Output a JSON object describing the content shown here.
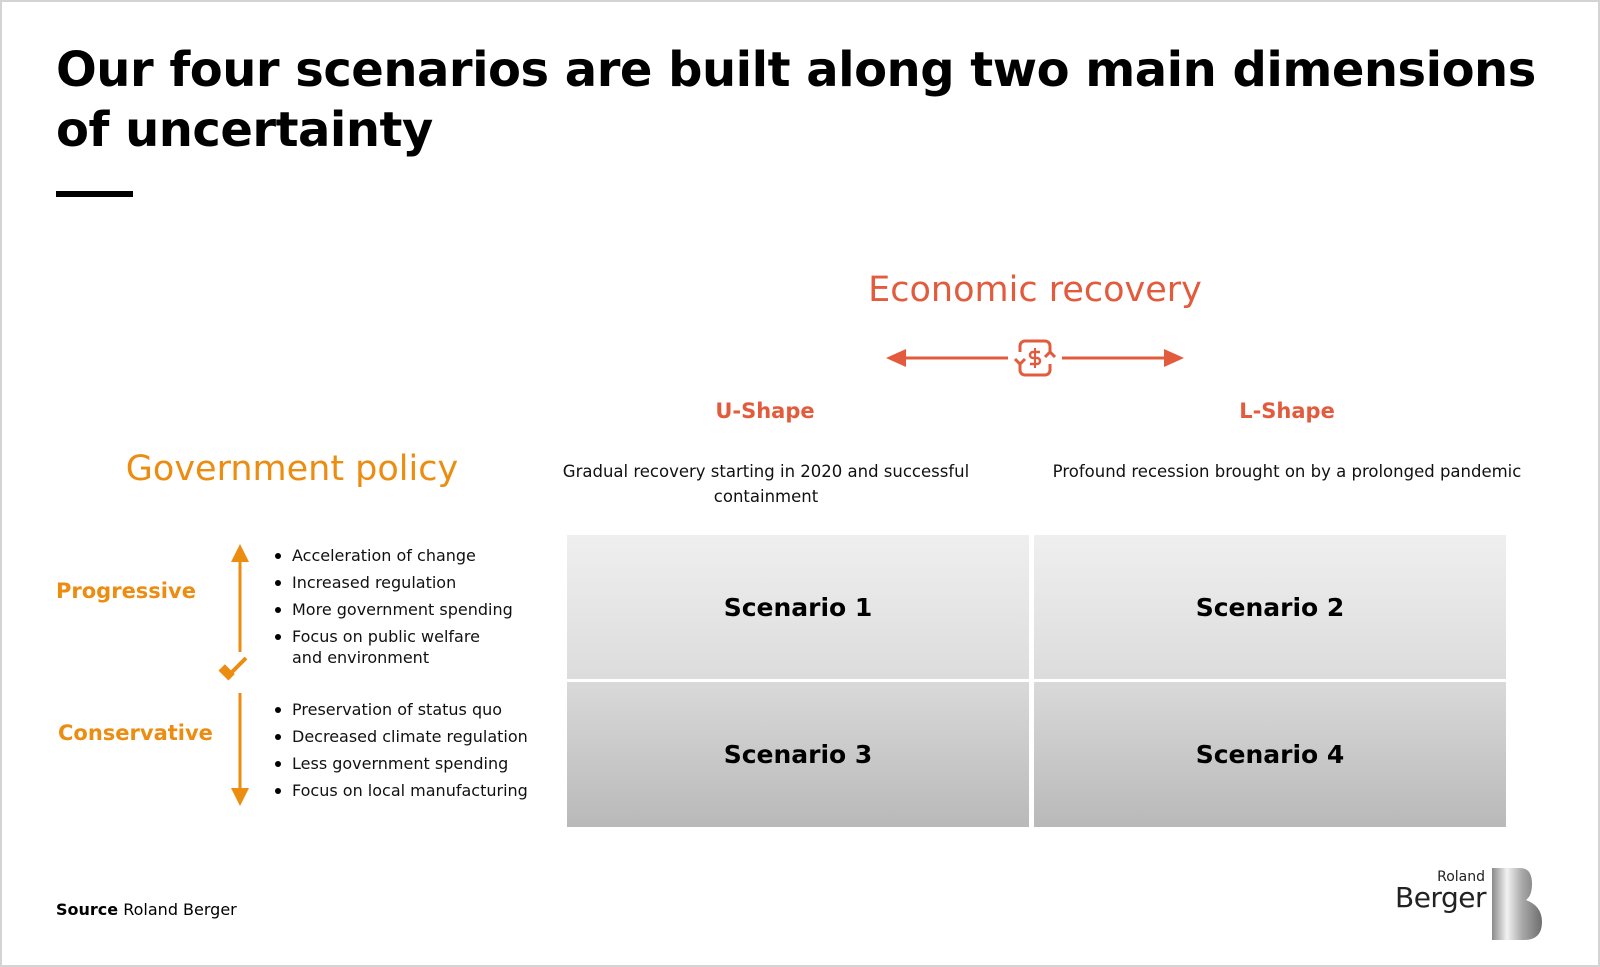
{
  "title": "Our four scenarios are built along two main dimensions of uncertainty",
  "economic_recovery": {
    "label": "Economic recovery",
    "icon": "dollar-exchange-icon",
    "color": "#e35b3d",
    "columns": [
      {
        "label": "U-Shape",
        "description": "Gradual recovery starting in 2020 and successful containment"
      },
      {
        "label": "L-Shape",
        "description": "Profound recession brought on by a prolonged pandemic"
      }
    ]
  },
  "government_policy": {
    "label": "Government policy",
    "icon": "gavel-icon",
    "color": "#ec8c11",
    "rows": [
      {
        "label": "Progressive",
        "bullets": [
          "Acceleration of change",
          "Increased regulation",
          "More government spending",
          "Focus on public welfare and environment"
        ]
      },
      {
        "label": "Conservative",
        "bullets": [
          "Preservation of status quo",
          "Decreased climate regulation",
          "Less government spending",
          "Focus on local manufacturing"
        ]
      }
    ]
  },
  "scenarios": [
    "Scenario 1",
    "Scenario 2",
    "Scenario 3",
    "Scenario 4"
  ],
  "source": {
    "label": "Source",
    "value": "Roland Berger"
  },
  "logo": {
    "line1": "Roland",
    "line2": "Berger"
  }
}
